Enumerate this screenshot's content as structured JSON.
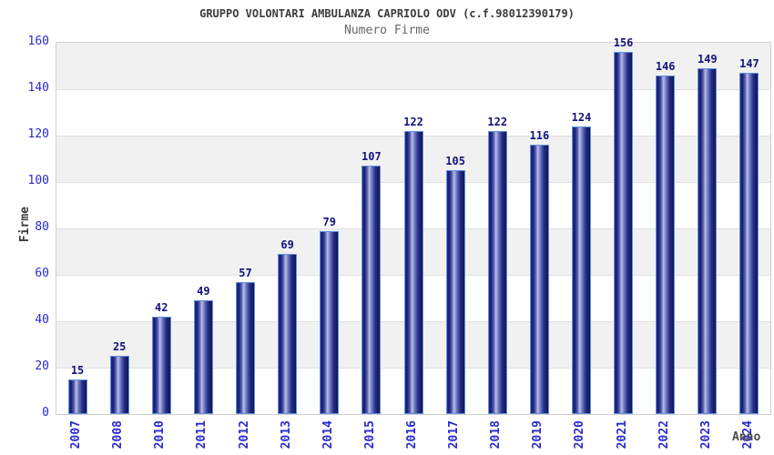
{
  "header": {
    "title": "GRUPPO VOLONTARI AMBULANZA CAPRIOLO ODV (c.f.98012390179)",
    "subtitle": "Numero Firme"
  },
  "chart_data": {
    "type": "bar",
    "title": "GRUPPO VOLONTARI AMBULANZA CAPRIOLO ODV (c.f.98012390179)",
    "subtitle": "Numero Firme",
    "xlabel": "Anno",
    "ylabel": "Firme",
    "categories": [
      "2007",
      "2008",
      "2010",
      "2011",
      "2012",
      "2013",
      "2014",
      "2015",
      "2016",
      "2017",
      "2018",
      "2019",
      "2020",
      "2021",
      "2022",
      "2023",
      "2024"
    ],
    "values": [
      15,
      25,
      42,
      49,
      57,
      69,
      79,
      107,
      122,
      105,
      122,
      116,
      124,
      156,
      146,
      149,
      147
    ],
    "ylim": [
      0,
      160
    ],
    "yticks": [
      0,
      20,
      40,
      60,
      80,
      100,
      120,
      140,
      160
    ],
    "legend_position": "none",
    "grid": "horizontal-bands-alternating",
    "colors": {
      "bar_border": "#5f92de",
      "bar_dark": "#161c66",
      "bar_mid": "#3a46a3",
      "bar_light": "#b9bfe4",
      "axis_tick_label": "#2a2ad0",
      "value_label": "#13137d",
      "gridline": "#e0e0e0",
      "plot_border": "#d0d0d0",
      "band_gray": "#f1f1f1",
      "band_white": "#ffffff",
      "title_color": "#3c3c3c",
      "subtitle_color": "#666666"
    }
  }
}
